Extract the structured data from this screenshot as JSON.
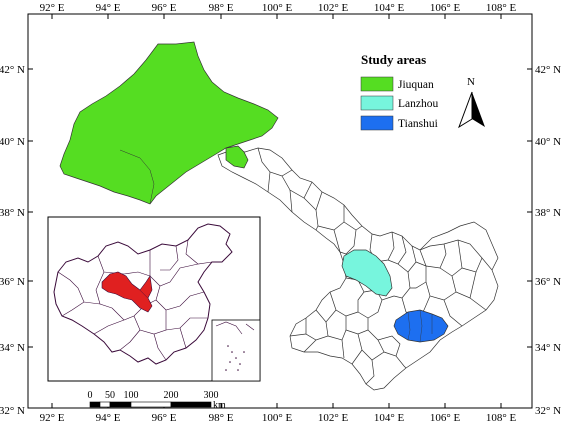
{
  "colors": {
    "jiuquan": "#55dd22",
    "lanzhou": "#77f5dd",
    "tianshui": "#1d6ff0",
    "gansu_inset": "#e02020",
    "inset_border": "#3a0a3a",
    "county_border": "#333333"
  },
  "axes": {
    "top": [
      "92° E",
      "94° E",
      "96° E",
      "98° E",
      "100° E",
      "102° E",
      "104° E",
      "106° E",
      "108° E"
    ],
    "bottom": [
      "92° E",
      "94° E",
      "96° E",
      "98° E",
      "100° E",
      "102° E",
      "104° E",
      "106° E",
      "108° E"
    ],
    "left": [
      "42° N",
      "40° N",
      "38° N",
      "36° N",
      "34° N",
      "32° N"
    ],
    "right": [
      "42° N",
      "40° N",
      "38° N",
      "36° N",
      "34° N",
      "32° N"
    ]
  },
  "legend": {
    "title": "Study areas",
    "items": [
      {
        "label": "Jiuquan",
        "color_key": "jiuquan"
      },
      {
        "label": "Lanzhou",
        "color_key": "lanzhou"
      },
      {
        "label": "Tianshui",
        "color_key": "tianshui"
      }
    ]
  },
  "north_arrow": {
    "letter": "N",
    "icon": "north-arrow-icon"
  },
  "scale_bar": {
    "ticks": [
      "0",
      "50",
      "100",
      "200",
      "300"
    ],
    "unit": "km"
  }
}
